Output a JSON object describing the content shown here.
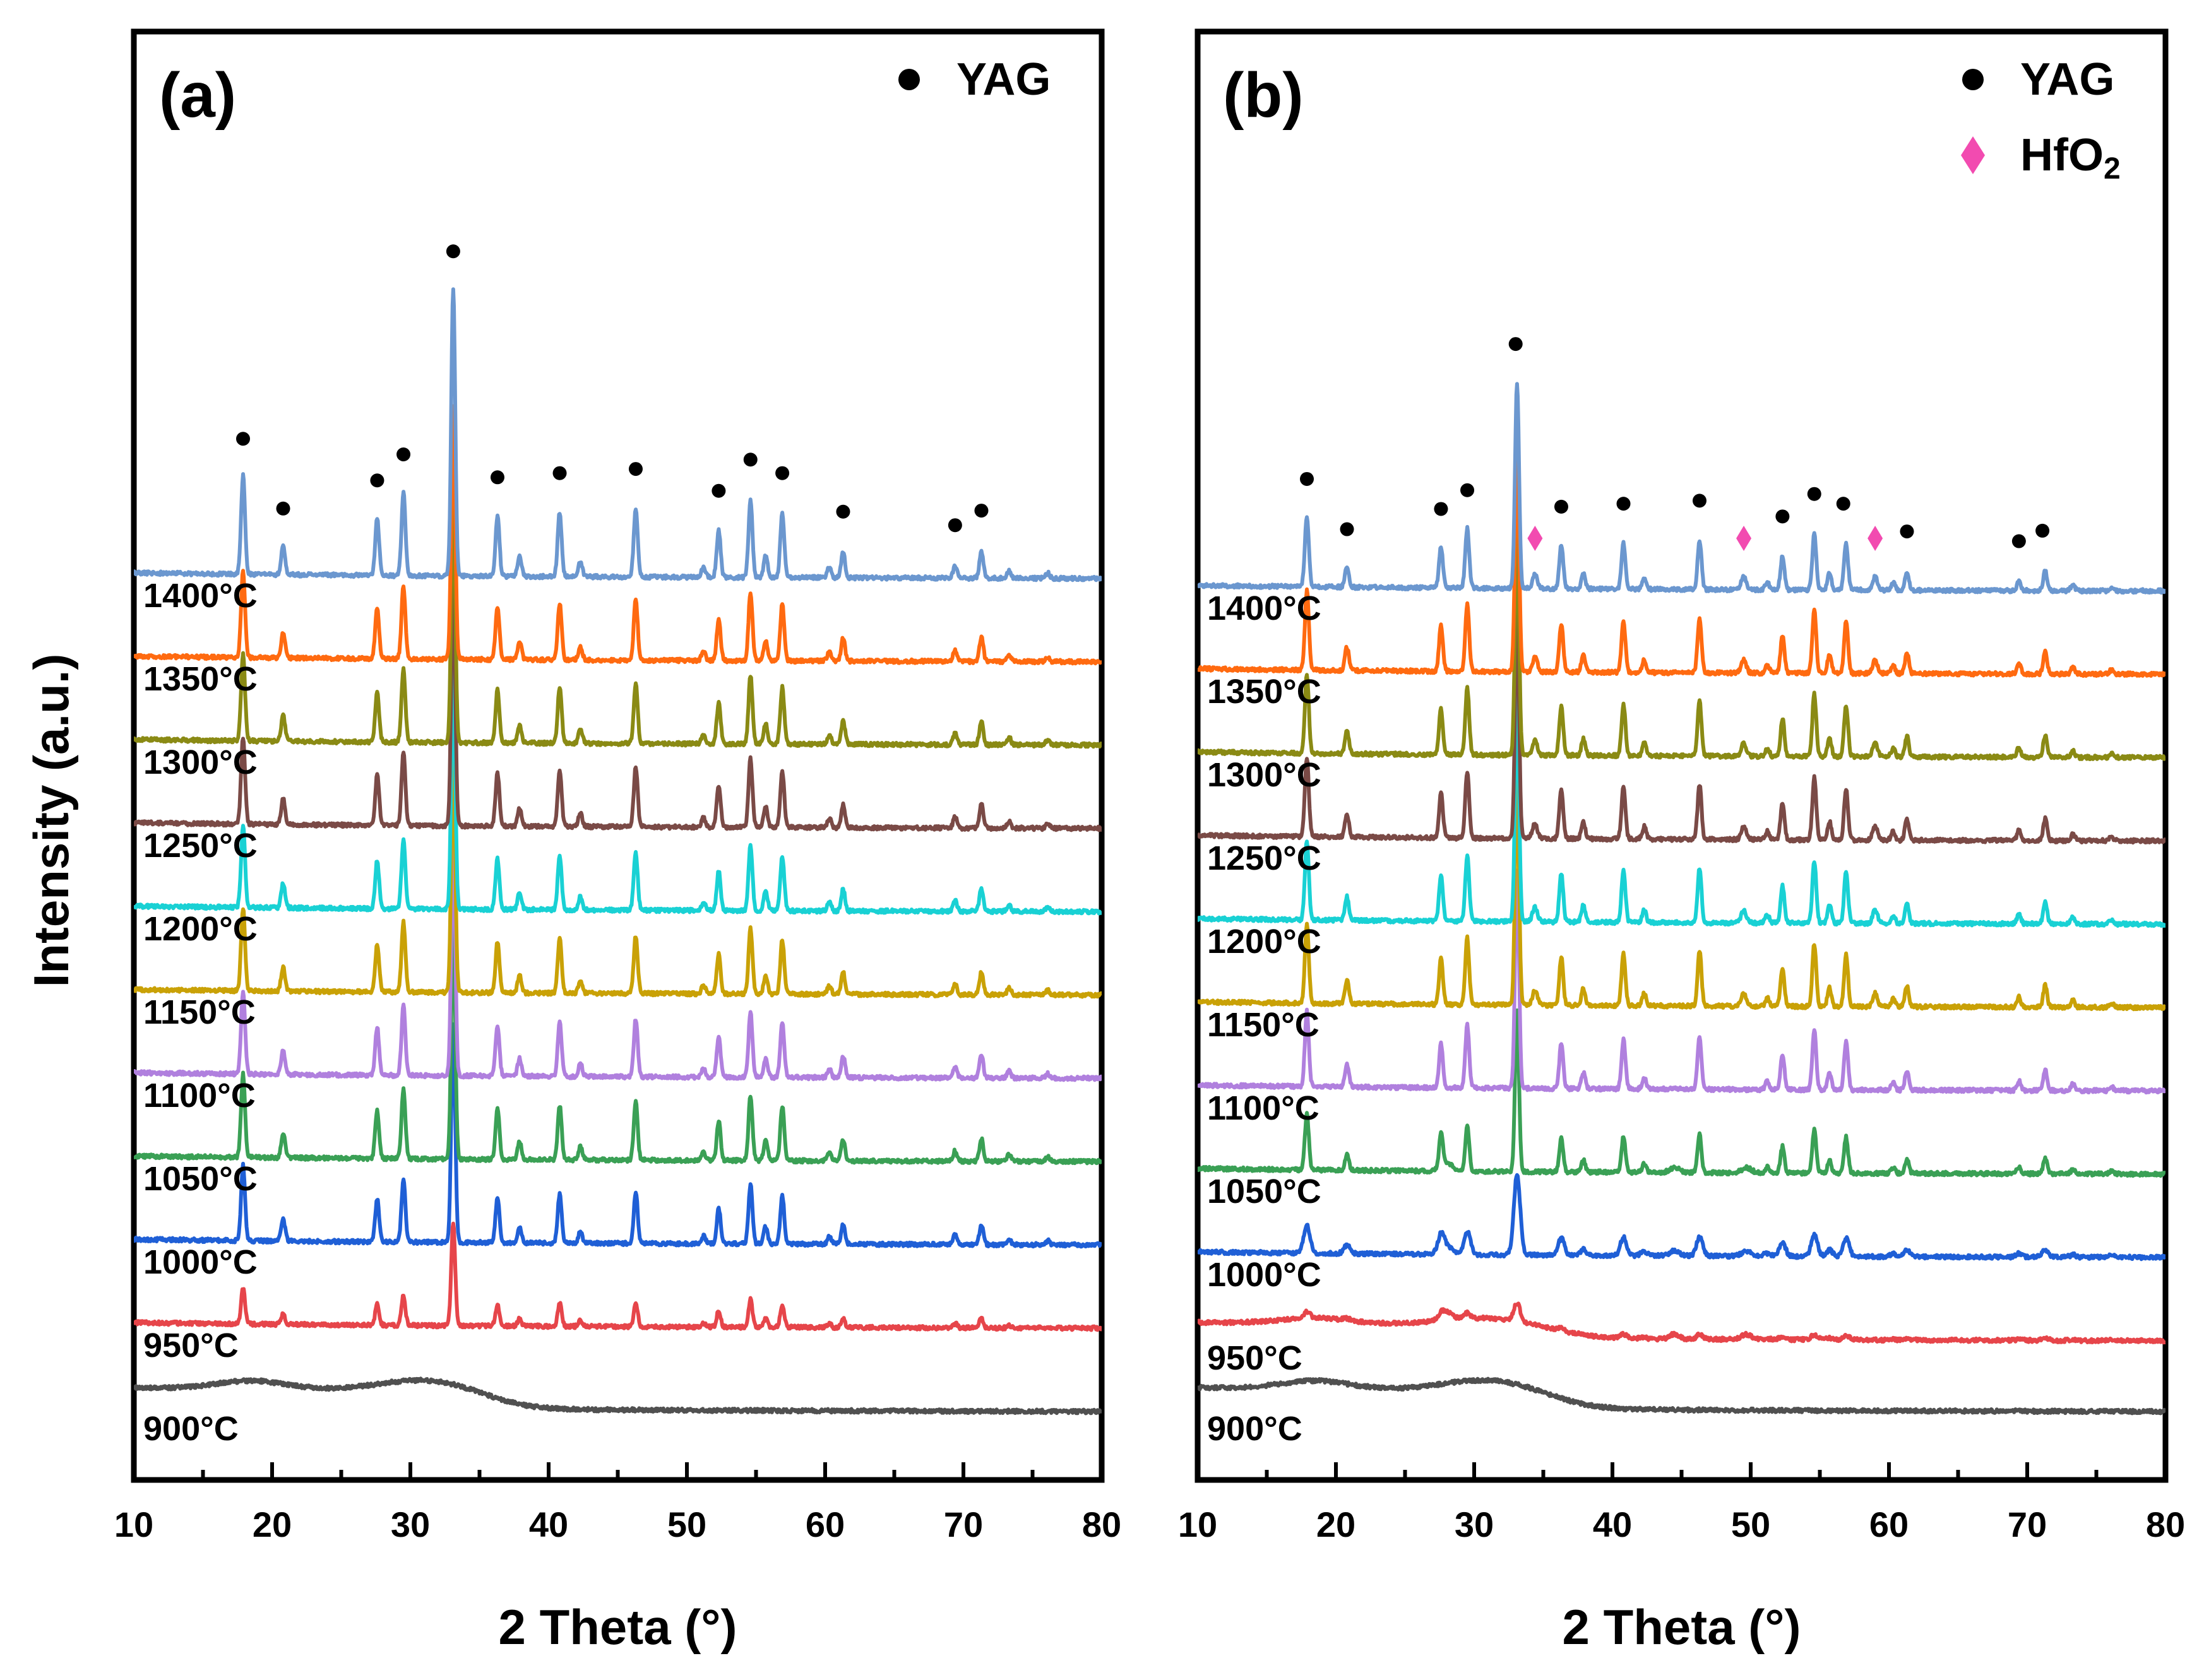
{
  "figure": {
    "ylabel": "Intensity (a.u.)"
  },
  "chart_data": [
    {
      "type": "line",
      "panel_label": "(a)",
      "xlabel": "2 Theta (°)",
      "ylabel": "Intensity (a.u.)",
      "xlim": [
        10,
        80
      ],
      "xticks": [
        "10",
        "20",
        "30",
        "40",
        "50",
        "60",
        "70",
        "80"
      ],
      "legend": [
        {
          "symbol": "circle",
          "color": "#000000",
          "label": "YAG"
        }
      ],
      "yag_marker_positions": [
        17.9,
        20.8,
        27.6,
        29.5,
        33.1,
        36.3,
        40.8,
        46.3,
        52.3,
        54.6,
        56.9,
        61.3,
        69.4,
        71.3
      ],
      "series": [
        {
          "name": "900°C",
          "color": "#505050",
          "baseline": 0.0,
          "peak_scale": 0.0,
          "amorphous": true
        },
        {
          "name": "950°C",
          "color": "#e6454a",
          "baseline": 1.0,
          "peak_scale": 0.45,
          "amorphous": false
        },
        {
          "name": "1000°C",
          "color": "#1f5fd6",
          "baseline": 2.0,
          "peak_scale": 0.95,
          "amorphous": false
        },
        {
          "name": "1050°C",
          "color": "#3aa055",
          "baseline": 3.0,
          "peak_scale": 1.05,
          "amorphous": false
        },
        {
          "name": "1100°C",
          "color": "#b080de",
          "baseline": 4.0,
          "peak_scale": 1.05,
          "amorphous": false
        },
        {
          "name": "1150°C",
          "color": "#c9a106",
          "baseline": 5.0,
          "peak_scale": 1.05,
          "amorphous": false
        },
        {
          "name": "1200°C",
          "color": "#19d1d4",
          "baseline": 6.0,
          "peak_scale": 1.05,
          "amorphous": false
        },
        {
          "name": "1250°C",
          "color": "#7a4a46",
          "baseline": 7.0,
          "peak_scale": 1.1,
          "amorphous": false
        },
        {
          "name": "1300°C",
          "color": "#8a8a14",
          "baseline": 8.0,
          "peak_scale": 1.1,
          "amorphous": false
        },
        {
          "name": "1350°C",
          "color": "#ff6a10",
          "baseline": 9.0,
          "peak_scale": 1.1,
          "amorphous": false
        },
        {
          "name": "1400°C",
          "color": "#6b97cf",
          "baseline": 10.0,
          "peak_scale": 1.25,
          "amorphous": false
        }
      ]
    },
    {
      "type": "line",
      "panel_label": "(b)",
      "xlabel": "2 Theta (°)",
      "xlim": [
        10,
        80
      ],
      "xticks": [
        "10",
        "20",
        "30",
        "40",
        "50",
        "60",
        "70",
        "80"
      ],
      "legend": [
        {
          "symbol": "circle",
          "color": "#000000",
          "label": "YAG"
        },
        {
          "symbol": "diamond",
          "color": "#f24bb0",
          "label": "HfO",
          "subscript": "2"
        }
      ],
      "yag_marker_positions": [
        17.9,
        20.8,
        27.6,
        29.5,
        33.0,
        36.3,
        40.8,
        46.3,
        52.3,
        54.6,
        56.7,
        61.3,
        69.4,
        71.1
      ],
      "hfo2_marker_positions": [
        34.4,
        49.5,
        59.0
      ],
      "series": [
        {
          "name": "900°C",
          "color": "#505050",
          "baseline": 0.0,
          "peak_scale": 0.0,
          "amorphous": true
        },
        {
          "name": "950°C",
          "color": "#e6454a",
          "baseline": 0.85,
          "peak_scale": 0.08,
          "amorphous": true
        },
        {
          "name": "1000°C",
          "color": "#1f5fd6",
          "baseline": 1.85,
          "peak_scale": 0.35,
          "amorphous": false
        },
        {
          "name": "1050°C",
          "color": "#3aa055",
          "baseline": 2.85,
          "peak_scale": 0.7,
          "amorphous": false
        },
        {
          "name": "1100°C",
          "color": "#b080de",
          "baseline": 3.85,
          "peak_scale": 0.95,
          "amorphous": false
        },
        {
          "name": "1150°C",
          "color": "#c9a106",
          "baseline": 4.85,
          "peak_scale": 1.0,
          "amorphous": false
        },
        {
          "name": "1200°C",
          "color": "#19d1d4",
          "baseline": 5.85,
          "peak_scale": 1.0,
          "amorphous": false
        },
        {
          "name": "1250°C",
          "color": "#7a4a46",
          "baseline": 6.85,
          "peak_scale": 1.0,
          "amorphous": false
        },
        {
          "name": "1300°C",
          "color": "#8a8a14",
          "baseline": 7.85,
          "peak_scale": 1.0,
          "amorphous": false
        },
        {
          "name": "1350°C",
          "color": "#ff6a10",
          "baseline": 8.85,
          "peak_scale": 1.0,
          "amorphous": false
        },
        {
          "name": "1400°C",
          "color": "#6b97cf",
          "baseline": 9.85,
          "peak_scale": 0.9,
          "amorphous": false
        }
      ]
    }
  ]
}
